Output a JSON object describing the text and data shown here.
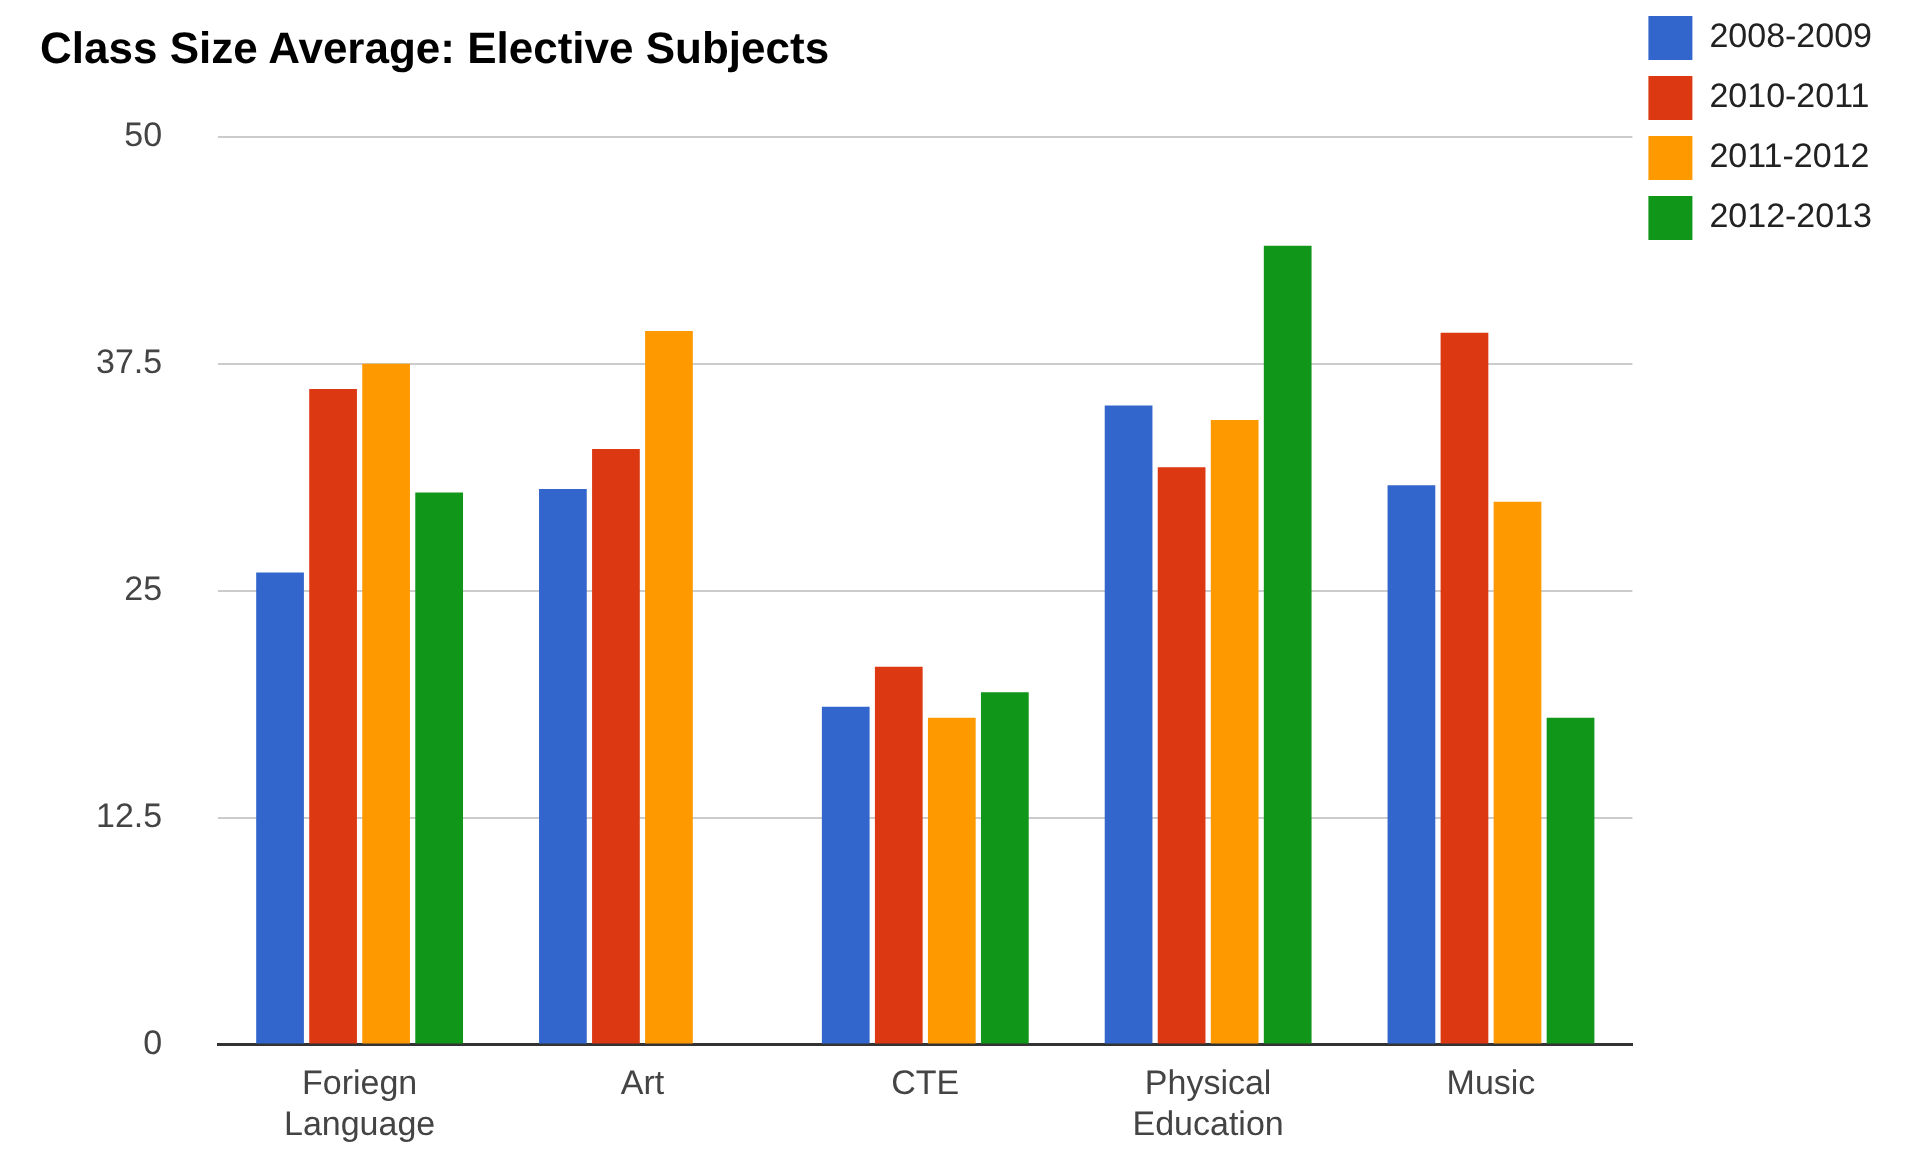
{
  "chart_data": {
    "type": "bar",
    "title": "Class Size Average: Elective Subjects",
    "categories": [
      "Foriegn Language",
      "Art",
      "CTE",
      "Physical Education",
      "Music"
    ],
    "series": [
      {
        "name": "2008-2009",
        "color": "#3366cc",
        "values": [
          26.0,
          30.6,
          18.6,
          35.2,
          30.8
        ]
      },
      {
        "name": "2010-2011",
        "color": "#dc3912",
        "values": [
          36.1,
          32.8,
          20.8,
          31.8,
          39.2
        ]
      },
      {
        "name": "2011-2012",
        "color": "#ff9900",
        "values": [
          37.5,
          39.3,
          18.0,
          34.4,
          29.9
        ]
      },
      {
        "name": "2012-2013",
        "color": "#109618",
        "values": [
          30.4,
          null,
          19.4,
          44.0,
          18.0
        ]
      }
    ],
    "ylim": [
      0,
      50
    ],
    "yticks": [
      0,
      12.5,
      25,
      37.5,
      50
    ],
    "grid": "y",
    "legend": "right"
  }
}
